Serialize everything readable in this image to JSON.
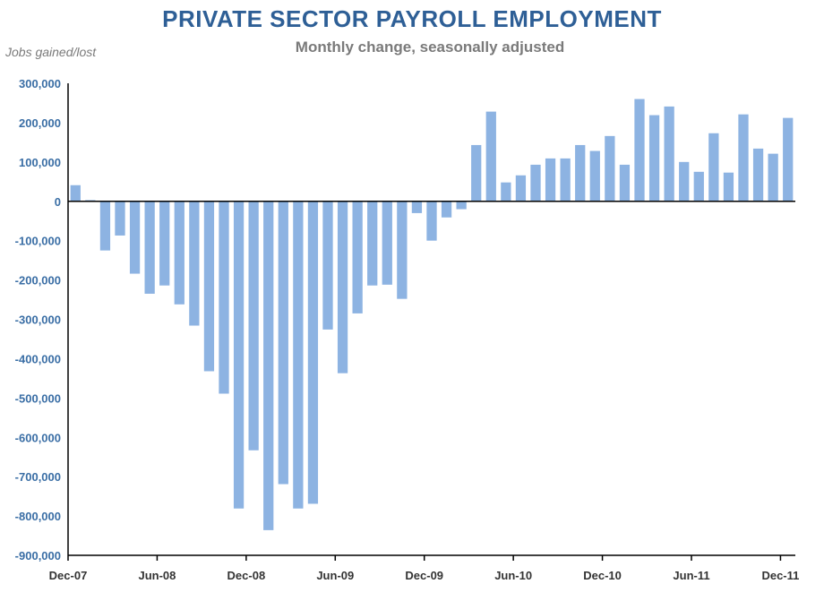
{
  "chart_data": {
    "type": "bar",
    "title": "PRIVATE SECTOR PAYROLL EMPLOYMENT",
    "subtitle": "Monthly change, seasonally adjusted",
    "ylabel": "Jobs gained/lost",
    "xlabel": "",
    "ylim": [
      -900000,
      300000
    ],
    "yticks": [
      300000,
      200000,
      100000,
      0,
      -100000,
      -200000,
      -300000,
      -400000,
      -500000,
      -600000,
      -700000,
      -800000,
      -900000
    ],
    "ytick_labels": [
      "300,000",
      "200,000",
      "100,000",
      "0",
      "-100,000",
      "-200,000",
      "-300,000",
      "-400,000",
      "-500,000",
      "-600,000",
      "-700,000",
      "-800,000",
      "-900,000"
    ],
    "xtick_labels": [
      "Dec-07",
      "Jun-08",
      "Dec-08",
      "Jun-09",
      "Dec-09",
      "Jun-10",
      "Dec-10",
      "Jun-11",
      "Dec-11"
    ],
    "xtick_every": 6,
    "values": [
      41000,
      3000,
      -125000,
      -87000,
      -184000,
      -235000,
      -214000,
      -262000,
      -316000,
      -432000,
      -489000,
      -781000,
      -633000,
      -836000,
      -719000,
      -781000,
      -769000,
      -326000,
      -437000,
      -285000,
      -214000,
      -212000,
      -248000,
      -30000,
      -100000,
      -41000,
      -20000,
      143000,
      228000,
      48000,
      66000,
      93000,
      109000,
      109000,
      143000,
      128000,
      166000,
      93000,
      260000,
      219000,
      241000,
      100000,
      75000,
      173000,
      73000,
      221000,
      134000,
      121000,
      212000
    ],
    "bar_color": "#8db3e2",
    "grid": false
  }
}
